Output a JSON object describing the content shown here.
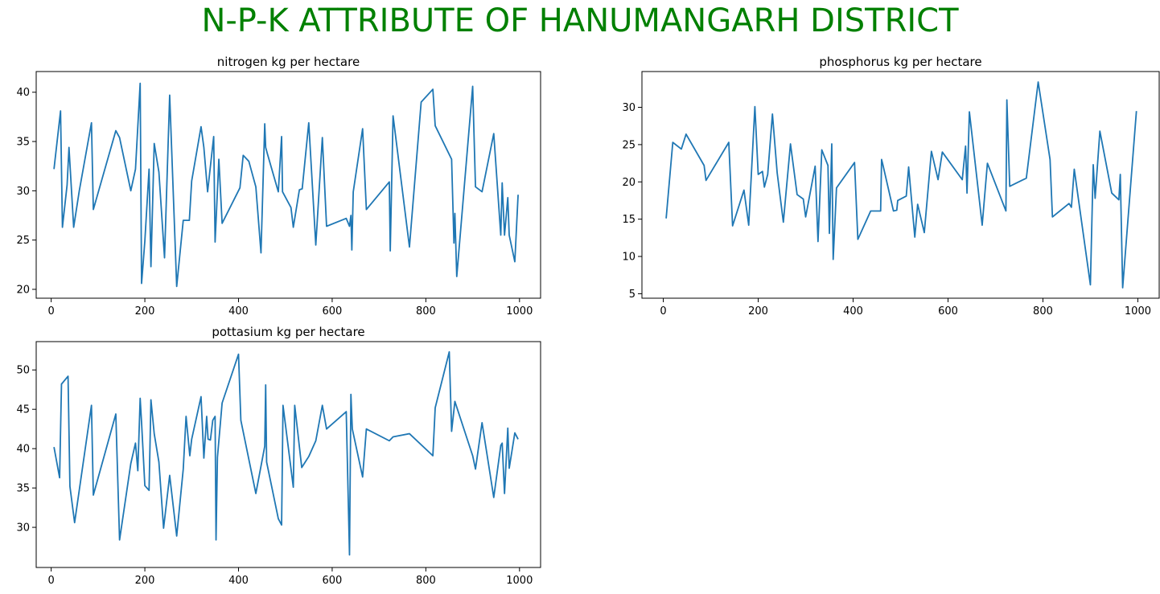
{
  "title": "N-P-K ATTRIBUTE OF HANUMANGARH DISTRICT",
  "colors": {
    "title": "#008000",
    "series": "#1f77b4",
    "axis": "#000000"
  },
  "chart_data": [
    {
      "type": "line",
      "title": "nitrogen kg per hectare",
      "xlabel": "",
      "ylabel": "",
      "xlim": [
        -32,
        1045
      ],
      "ylim": [
        19.1,
        42.1
      ],
      "xticks": [
        0,
        200,
        400,
        600,
        800,
        1000
      ],
      "yticks": [
        20,
        25,
        30,
        35,
        40
      ],
      "grid": false,
      "series": [
        {
          "x": [
            6,
            20,
            24,
            34,
            38,
            48,
            60,
            86,
            90,
            138,
            146,
            170,
            180,
            190,
            193,
            200,
            209,
            213,
            220,
            230,
            242,
            253,
            268,
            282,
            295,
            300,
            320,
            326,
            334,
            347,
            350,
            355,
            358,
            365,
            403,
            410,
            422,
            437,
            448,
            456,
            458,
            462,
            485,
            492,
            494,
            512,
            517,
            530,
            536,
            550,
            565,
            579,
            588,
            630,
            637,
            640,
            642,
            645,
            665,
            673,
            722,
            724,
            730,
            765,
            790,
            815,
            820,
            855,
            860,
            862,
            866,
            900,
            906,
            920,
            945,
            960,
            963,
            968,
            975,
            978,
            990,
            997
          ],
          "y": [
            32.2,
            38.1,
            26.3,
            30.6,
            34.4,
            26.3,
            30.0,
            36.9,
            28.1,
            36.1,
            35.4,
            30.0,
            32.2,
            40.9,
            20.6,
            24.9,
            32.2,
            22.3,
            34.8,
            31.9,
            23.2,
            39.7,
            20.3,
            27.0,
            27.0,
            31.0,
            36.5,
            34.4,
            29.9,
            35.5,
            24.8,
            30.0,
            33.2,
            26.7,
            30.3,
            33.6,
            33.0,
            30.4,
            23.7,
            36.8,
            34.4,
            33.7,
            29.9,
            35.5,
            29.9,
            28.3,
            26.3,
            30.1,
            30.2,
            36.9,
            24.5,
            35.4,
            26.4,
            27.2,
            26.4,
            27.5,
            24.0,
            29.9,
            36.3,
            28.1,
            30.9,
            23.9,
            37.6,
            24.3,
            39.0,
            40.3,
            36.6,
            33.2,
            24.7,
            27.7,
            21.3,
            40.6,
            30.4,
            29.9,
            35.8,
            25.5,
            30.8,
            25.5,
            29.3,
            25.5,
            22.8,
            29.6
          ]
        }
      ]
    },
    {
      "type": "line",
      "title": "phosphorus kg per hectare",
      "xlabel": "",
      "ylabel": "",
      "xlim": [
        -45,
        1045
      ],
      "ylim": [
        4.4,
        34.8
      ],
      "xticks": [
        0,
        200,
        400,
        600,
        800,
        1000
      ],
      "yticks": [
        5,
        10,
        15,
        20,
        25,
        30
      ],
      "grid": false,
      "series": [
        {
          "x": [
            6,
            20,
            38,
            48,
            86,
            90,
            138,
            146,
            170,
            180,
            193,
            200,
            209,
            213,
            220,
            230,
            240,
            253,
            268,
            282,
            295,
            300,
            320,
            326,
            334,
            347,
            350,
            355,
            358,
            365,
            403,
            410,
            437,
            458,
            460,
            462,
            485,
            492,
            494,
            512,
            517,
            530,
            536,
            550,
            565,
            579,
            588,
            630,
            637,
            640,
            645,
            672,
            683,
            722,
            724,
            730,
            765,
            790,
            815,
            820,
            855,
            860,
            866,
            900,
            906,
            910,
            920,
            945,
            960,
            963,
            968,
            997
          ],
          "y": [
            15.1,
            25.3,
            24.4,
            26.4,
            22.2,
            20.2,
            25.3,
            14.1,
            18.9,
            14.2,
            30.1,
            21.0,
            21.4,
            19.3,
            21.0,
            29.1,
            21.2,
            14.6,
            25.1,
            18.3,
            17.7,
            15.3,
            22.1,
            12.0,
            24.3,
            22.2,
            13.1,
            25.1,
            9.6,
            19.2,
            22.6,
            12.3,
            16.1,
            16.1,
            23.0,
            22.5,
            16.1,
            16.2,
            17.5,
            18.1,
            22.0,
            12.6,
            17.0,
            13.2,
            24.1,
            20.3,
            24.0,
            20.3,
            24.8,
            18.5,
            29.4,
            14.2,
            22.5,
            16.1,
            31.0,
            19.4,
            20.5,
            33.4,
            23.0,
            15.3,
            17.1,
            16.6,
            21.7,
            6.2,
            22.3,
            17.8,
            26.8,
            18.5,
            17.6,
            21.0,
            5.8,
            29.5
          ]
        }
      ]
    },
    {
      "type": "line",
      "title": "pottasium kg per hectare",
      "xlabel": "",
      "ylabel": "",
      "xlim": [
        -32,
        1045
      ],
      "ylim": [
        24.9,
        53.6
      ],
      "xticks": [
        0,
        200,
        400,
        600,
        800,
        1000
      ],
      "yticks": [
        30,
        35,
        40,
        45,
        50
      ],
      "grid": false,
      "series": [
        {
          "x": [
            6,
            18,
            22,
            36,
            40,
            50,
            86,
            90,
            138,
            146,
            170,
            180,
            185,
            190,
            193,
            200,
            209,
            213,
            220,
            230,
            240,
            253,
            268,
            282,
            288,
            296,
            300,
            320,
            326,
            332,
            335,
            340,
            345,
            350,
            352,
            355,
            365,
            400,
            405,
            437,
            456,
            458,
            460,
            485,
            492,
            495,
            517,
            520,
            535,
            550,
            565,
            579,
            588,
            630,
            637,
            640,
            643,
            665,
            673,
            722,
            730,
            765,
            815,
            820,
            850,
            855,
            862,
            900,
            906,
            920,
            945,
            960,
            963,
            968,
            975,
            978,
            990,
            997
          ],
          "y": [
            40.2,
            36.3,
            48.2,
            49.2,
            35.2,
            30.6,
            45.5,
            34.1,
            44.4,
            28.4,
            38.1,
            40.7,
            37.2,
            46.4,
            43.3,
            35.3,
            34.7,
            46.2,
            41.9,
            38.3,
            29.9,
            36.6,
            28.9,
            37.4,
            44.1,
            39.1,
            41.2,
            46.6,
            38.8,
            44.1,
            41.2,
            41.1,
            43.6,
            44.1,
            28.4,
            38.9,
            45.8,
            52.0,
            43.6,
            34.3,
            40.3,
            48.1,
            38.3,
            31.1,
            30.3,
            45.5,
            35.1,
            45.5,
            37.6,
            39.0,
            41.0,
            45.5,
            42.5,
            44.7,
            26.5,
            46.9,
            42.5,
            36.4,
            42.5,
            41.0,
            41.5,
            41.9,
            39.1,
            45.2,
            52.3,
            42.2,
            46.0,
            39.1,
            37.4,
            43.3,
            33.8,
            40.4,
            40.7,
            34.3,
            42.6,
            37.5,
            42.0,
            41.2
          ]
        }
      ]
    }
  ]
}
